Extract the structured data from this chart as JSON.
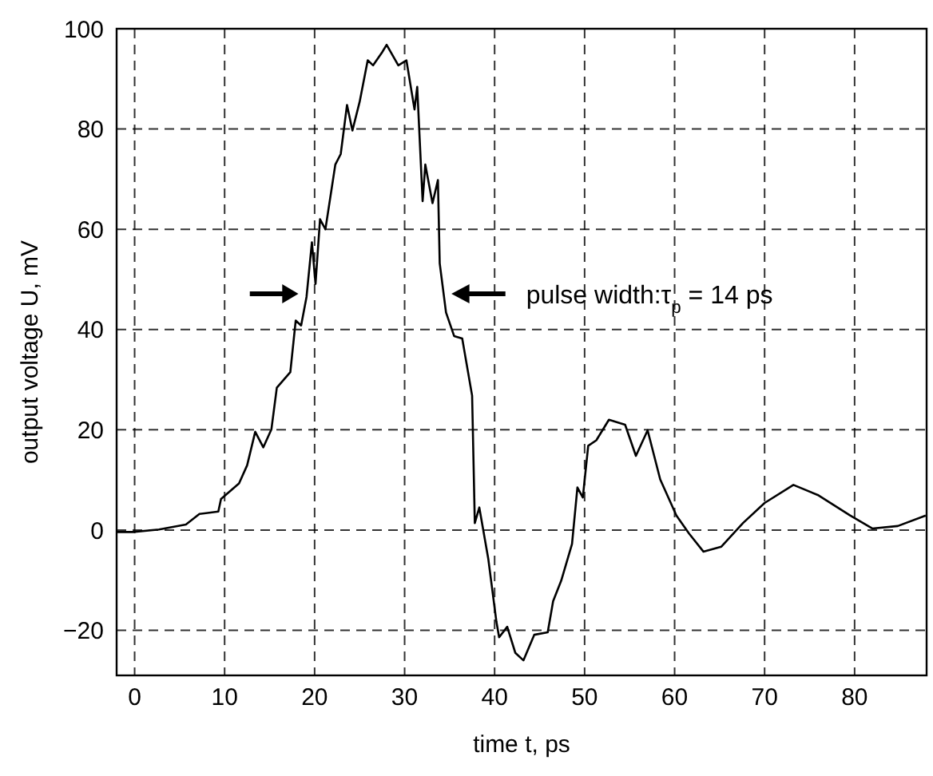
{
  "chart_data": {
    "type": "line",
    "xlabel": "time t, ps",
    "ylabel": "output voltage U, mV",
    "annotations": [
      "pulse width:τ$_{p}$ = 14 ps"
    ],
    "xlim": [
      -2,
      88
    ],
    "xticks": [
      0,
      10,
      20,
      30,
      40,
      50,
      60,
      70,
      80
    ],
    "ylim": [
      -29,
      100
    ],
    "yticks": [
      -20,
      0,
      20,
      40,
      60,
      80,
      100
    ],
    "grid": true,
    "line_style": "solid",
    "marker": "none",
    "series": [
      {
        "color": "#000000",
        "x": [
          -2,
          -0.2,
          2.7,
          5.7,
          7.2,
          9.3,
          9.6,
          11.6,
          12.5,
          13.4,
          14.3,
          15.2,
          15.8,
          17.3,
          17.9,
          18.5,
          19.1,
          19.7,
          20.1,
          20.6,
          21.2,
          22.3,
          22.9,
          23.6,
          24.2,
          25,
          25.9,
          26.5,
          27.5,
          28,
          29.3,
          30.2,
          31.1,
          31.4,
          32,
          32.3,
          33.1,
          33.7,
          33.9,
          34.6,
          35.5,
          36.4,
          37.5,
          37.8,
          38.3,
          39.3,
          40.2,
          40.5,
          41.4,
          42.3,
          43.2,
          44.4,
          45.9,
          46.5,
          47.4,
          48.6,
          49.2,
          49.8,
          50.4,
          51.3,
          52.7,
          54.5,
          55.7,
          57,
          58.4,
          60.2,
          61.6,
          63.2,
          65.2,
          67.6,
          70,
          73.2,
          75.9,
          79.5,
          82,
          84.8,
          87.9
        ],
        "values": [
          -0.4,
          -0.4,
          0.1,
          1.1,
          3.2,
          3.7,
          6.2,
          9.3,
          12.9,
          19.6,
          16.5,
          20.1,
          28.4,
          31.5,
          41.8,
          40.8,
          46.5,
          57.4,
          49.1,
          62,
          60,
          72.9,
          75,
          84.8,
          79.7,
          85.4,
          93.7,
          92.7,
          95.3,
          96.8,
          92.7,
          93.7,
          83.9,
          88.4,
          65.6,
          72.9,
          65.2,
          69.8,
          53.2,
          43.4,
          38.7,
          38.2,
          26.8,
          1.4,
          4.5,
          -5.8,
          -18.3,
          -21.4,
          -19.3,
          -24.5,
          -26,
          -20.9,
          -20.4,
          -14.2,
          -10.1,
          -2.8,
          8.5,
          6.5,
          16.8,
          17.9,
          22,
          21,
          14.8,
          19.9,
          10.1,
          2.9,
          -0.7,
          -4.3,
          -3.3,
          1.4,
          5.4,
          9,
          7,
          2.9,
          0.3,
          0.8,
          2.9
        ]
      }
    ]
  }
}
